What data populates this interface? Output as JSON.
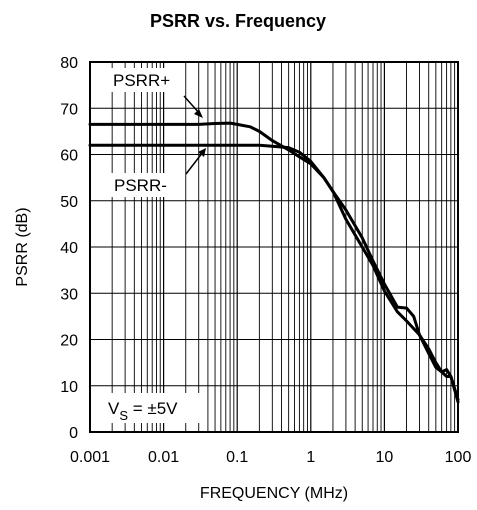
{
  "chart_data": {
    "type": "line",
    "title": "PSRR vs. Frequency",
    "xlabel": "FREQUENCY (MHz)",
    "ylabel": "PSRR (dB)",
    "x_scale": "log",
    "xlim": [
      0.001,
      100
    ],
    "ylim": [
      0,
      80
    ],
    "grid": true,
    "legend": "none",
    "x_ticks": [
      "0.001",
      "0.01",
      "0.1",
      "1",
      "10",
      "100"
    ],
    "y_ticks": [
      "0",
      "10",
      "20",
      "30",
      "40",
      "50",
      "60",
      "70",
      "80"
    ],
    "annotations": {
      "psrr_plus_label": "PSRR+",
      "psrr_minus_label": "PSRR-",
      "vs_label_main": "V",
      "vs_label_sub": "S",
      "vs_label_rest": " = ±5V"
    },
    "series": [
      {
        "name": "PSRR+",
        "x": [
          0.001,
          0.01,
          0.03,
          0.05,
          0.08,
          0.1,
          0.15,
          0.2,
          0.3,
          0.5,
          0.7,
          1,
          1.5,
          2,
          3,
          5,
          7,
          10,
          15,
          20,
          25,
          30,
          40,
          50,
          60,
          70,
          80,
          100
        ],
        "y": [
          66.5,
          66.5,
          66.5,
          66.7,
          66.8,
          66.5,
          66,
          65,
          63,
          61,
          59.5,
          58,
          55,
          52,
          48,
          42,
          37,
          32,
          27,
          26.8,
          25,
          21,
          17,
          14,
          13,
          13.5,
          12,
          7
        ]
      },
      {
        "name": "PSRR-",
        "x": [
          0.001,
          0.01,
          0.1,
          0.2,
          0.3,
          0.5,
          0.7,
          1,
          1.5,
          2,
          3,
          5,
          7,
          10,
          15,
          20,
          30,
          40,
          50,
          60,
          70,
          80,
          100
        ],
        "y": [
          62,
          62,
          62,
          62,
          61.8,
          61.5,
          60.5,
          58.5,
          55,
          52,
          46,
          40,
          36,
          30.5,
          26,
          24,
          21,
          18,
          15,
          13,
          12,
          12,
          6.5
        ]
      }
    ],
    "colors": {
      "line": "#000000",
      "grid": "#000000",
      "background": "#ffffff"
    }
  }
}
